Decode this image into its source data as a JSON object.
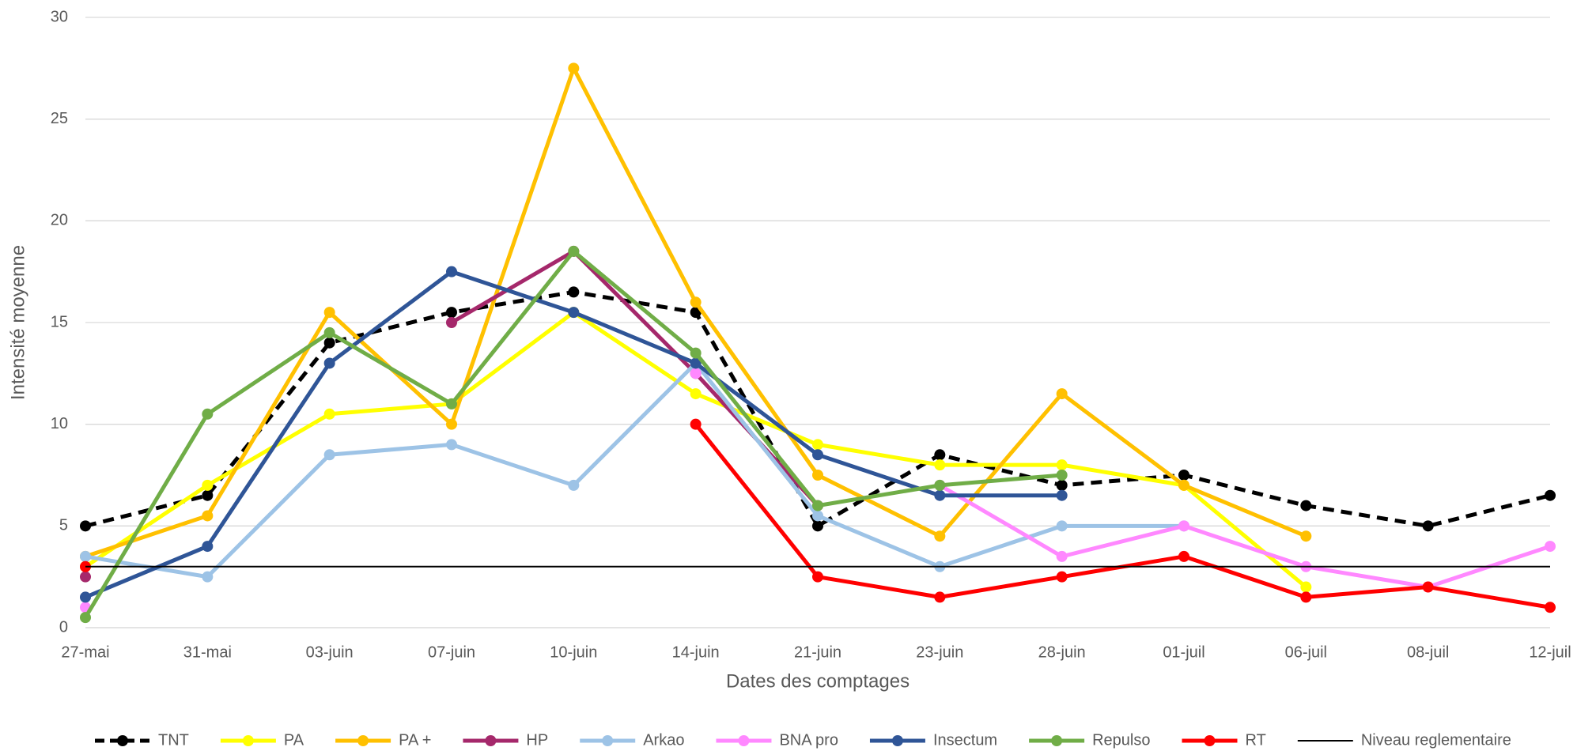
{
  "chart_data": {
    "type": "line",
    "x_label": "Dates des comptages",
    "y_label": "Intensité moyenne",
    "categories": [
      "27-mai",
      "31-mai",
      "03-juin",
      "07-juin",
      "10-juin",
      "14-juin",
      "21-juin",
      "23-juin",
      "28-juin",
      "01-juil",
      "06-juil",
      "08-juil",
      "12-juil"
    ],
    "ylim": [
      0,
      30
    ],
    "yticks": [
      0,
      5,
      10,
      15,
      20,
      25,
      30
    ],
    "grid": true,
    "legend": "bottom",
    "series": [
      {
        "name": "TNT",
        "color": "#000000",
        "dash": true,
        "markers": true,
        "values": [
          5,
          6.5,
          14,
          15.5,
          16.5,
          15.5,
          5,
          8.5,
          7,
          7.5,
          6,
          5,
          6.5
        ]
      },
      {
        "name": "PA",
        "color": "#ffff00",
        "markers": true,
        "values": [
          3,
          7,
          10.5,
          11,
          15.5,
          11.5,
          9,
          8,
          8,
          7,
          2,
          null,
          null
        ]
      },
      {
        "name": "PA +",
        "color": "#ffc000",
        "markers": true,
        "values": [
          3.5,
          5.5,
          15.5,
          10,
          27.5,
          16,
          7.5,
          4.5,
          11.5,
          7,
          4.5,
          null,
          null
        ]
      },
      {
        "name": "HP",
        "color": "#a5286b",
        "markers": true,
        "values": [
          2.5,
          null,
          null,
          15,
          18.5,
          12.5,
          6,
          null,
          null,
          null,
          null,
          null,
          null
        ]
      },
      {
        "name": "Arkao",
        "color": "#9dc3e6",
        "markers": true,
        "values": [
          3.5,
          2.5,
          8.5,
          9,
          7,
          13,
          5.5,
          3,
          5,
          5,
          null,
          null,
          null
        ]
      },
      {
        "name": "BNA pro",
        "color": "#ff88ff",
        "markers": true,
        "values": [
          1,
          null,
          null,
          null,
          null,
          12.5,
          null,
          7,
          3.5,
          5,
          3,
          2,
          4
        ]
      },
      {
        "name": "Insectum",
        "color": "#2f5597",
        "markers": true,
        "values": [
          1.5,
          4,
          13,
          17.5,
          15.5,
          13,
          8.5,
          6.5,
          6.5,
          null,
          null,
          null,
          null
        ]
      },
      {
        "name": "Repulso",
        "color": "#70ad47",
        "markers": true,
        "values": [
          0.5,
          10.5,
          14.5,
          11,
          18.5,
          13.5,
          6,
          7,
          7.5,
          null,
          null,
          null,
          null
        ]
      },
      {
        "name": "RT",
        "color": "#ff0000",
        "markers": true,
        "values": [
          3,
          null,
          null,
          null,
          null,
          10,
          2.5,
          1.5,
          2.5,
          3.5,
          1.5,
          2,
          1
        ]
      },
      {
        "name": "Niveau reglementaire",
        "color": "#000000",
        "markers": false,
        "thin": true,
        "values": [
          3,
          3,
          3,
          3,
          3,
          3,
          3,
          3,
          3,
          3,
          3,
          3,
          3
        ]
      }
    ]
  }
}
